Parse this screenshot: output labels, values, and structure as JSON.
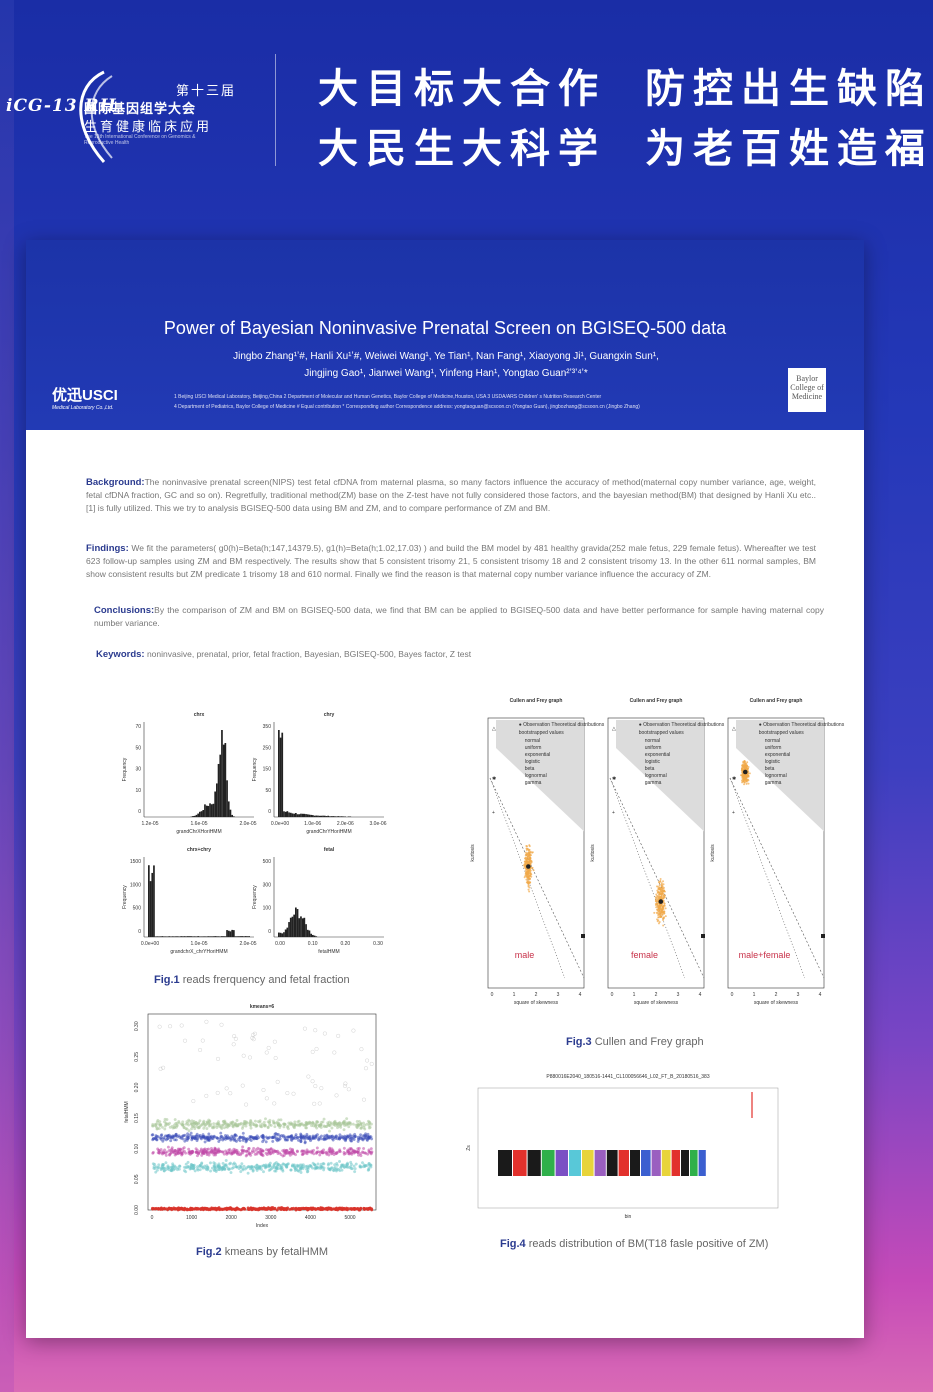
{
  "header": {
    "conference_mark": "iCG-13 RH",
    "edition": "第十三届",
    "name_line1": "国际基因组学大会",
    "name_line2": "生育健康临床应用",
    "name_en": "The 13th International Conference on Genomics & Reproductive Health",
    "slogan1": "大目标大合作",
    "slogan2": "防控出生缺陷",
    "slogan3": "大民生大科学",
    "slogan4": "为老百姓造福"
  },
  "poster": {
    "title": "Power of Bayesian Noninvasive Prenatal Screen on BGISEQ-500 data",
    "authors_line1": "Jingbo Zhang¹ʼ#, Hanli Xu¹ʼ#, Weiwei Wang¹, Ye Tian¹, Nan Fang¹, Xiaoyong Ji¹, Guangxin Sun¹,",
    "authors_line2": "Jingjing Gao¹, Jianwei Wang¹, Yinfeng Han¹, Yongtao Guan²ʼ³ʼ⁴ʼ*",
    "org_logo": "优迅USCI",
    "org_sub": "Medical Laboratory Co.,Ltd.",
    "affil_line1": "1 Beijing USCI Medical Laboratory, Beijing,China   2 Department of Molecular and Human Genetics, Baylor College of Medicine,Houston, USA   3  USDA/ARS Children' s Nutrition Research Center",
    "affil_line2": "4 Department of Pediatrics, Baylor College of Medicine  # Equal contribution  *  Corresponding author  Correspondence address: yongtaoguan@scsoon.cn (Yongtao Guan), jingbozhang@scsoon.cn (Jingbo Zhang)",
    "partner_logo": "Baylor College of Medicine",
    "background_label": "Background:",
    "background_text": "The noninvasive prenatal screen(NIPS) test fetal cfDNA from maternal plasma, so many factors influence the accuracy of method(maternal copy number variance, age, weight, fetal cfDNA fraction, GC and so on). Regretfully, traditional method(ZM) base on the Z-test have not fully considered those factors, and the bayesian method(BM) that designed by Hanli Xu etc..[1] is fully utilized. This we try to analysis BGISEQ-500 data using BM and ZM, and to compare performance of ZM and BM.",
    "findings_label": "Findings:",
    "findings_text": "We fit the parameters( g0(h)=Beta(h;147,14379.5), g1(h)=Beta(h;1.02,17.03) ) and build the BM model by 481 healthy gravida(252 male fetus, 229 female fetus). Whereafter we test 623 follow-up samples using ZM and BM respectively. The results show that 5 consistent trisomy 21, 5 consistent trisomy 18 and 2 consistent trisomy 13. In the other 611 normal samples, BM show consistent  results but ZM predicate 1 trisomy 18 and 610 normal. Finally we find the reason is that maternal copy number variance influence the accuracy of ZM.",
    "conclusions_label": "Conclusions:",
    "conclusions_text": "By the comparison of ZM and BM on BGISEQ-500 data, we find that BM can be applied to BGISEQ-500 data and have better performance for sample having maternal copy number variance.",
    "keywords_label": "Keywords:",
    "keywords_text": "noninvasive, prenatal, prior, fetal fraction, Bayesian, BGISEQ-500, Bayes factor, Z test"
  },
  "figures": {
    "fig1": {
      "caption_label": "Fig.1",
      "caption_text": " reads frerquency and fetal fraction",
      "panels": [
        {
          "title": "chrx",
          "xlabel": "grandChrXHoriHMM",
          "ylabel": "Frequency",
          "xticks": [
            "1.2e-05",
            "1.6e-05",
            "2.0e-05"
          ],
          "yticks": [
            "0",
            "10",
            "30",
            "50",
            "70"
          ]
        },
        {
          "title": "chry",
          "xlabel": "grandChrYHoriHMM",
          "ylabel": "Frequency",
          "xticks": [
            "0.0e+00",
            "1.0e-06",
            "2.0e-06",
            "3.0e-06"
          ],
          "yticks": [
            "0",
            "50",
            "150",
            "250",
            "350"
          ]
        },
        {
          "title": "chrx+chry",
          "xlabel": "grandchrX_chrYHoriHMM",
          "ylabel": "Frequency",
          "xticks": [
            "0.0e+00",
            "1.0e-05",
            "2.0e-05"
          ],
          "yticks": [
            "0",
            "500",
            "1000",
            "1500"
          ]
        },
        {
          "title": "fetal",
          "xlabel": "fetalHMM",
          "ylabel": "Frequency",
          "xticks": [
            "0.00",
            "0.10",
            "0.20",
            "0.30"
          ],
          "yticks": [
            "0",
            "100",
            "300",
            "500"
          ]
        }
      ]
    },
    "fig2": {
      "caption_label": "Fig.2",
      "caption_text": " kmeans by fetalHMM",
      "title": "kmeans=6",
      "xlabel": "Index",
      "ylabel": "fetalHMM",
      "xticks": [
        "0",
        "1000",
        "2000",
        "3000",
        "4000",
        "5000"
      ],
      "yticks": [
        "0.00",
        "0.05",
        "0.10",
        "0.15",
        "0.20",
        "0.25",
        "0.30"
      ],
      "cluster_colors": [
        "#d9342b",
        "#6fc7c9",
        "#c04aa8",
        "#3b4db8",
        "#a9c79a",
        "#999999"
      ]
    },
    "fig3": {
      "caption_label": "Fig.3",
      "caption_text": " Cullen and Frey graph",
      "panel_title": "Cullen and Frey graph",
      "xlabel": "square of skewness",
      "ylabel": "kurtosis",
      "legend_obs": "Observation",
      "legend_theory": "Theoretical distributions",
      "legend_boot": "bootstrapped values",
      "legend_items": [
        "normal",
        "uniform",
        "exponential",
        "logistic",
        "beta",
        "lognormal",
        "gamma"
      ],
      "labels": [
        "male",
        "female",
        "male+female"
      ],
      "label_color": "#c8324a"
    },
    "fig4": {
      "caption_label": "Fig.4",
      "caption_text": " reads distribution of BM(T18 fasle positive of ZM)",
      "title": "P880016E2040_180516-1441_CL100056646_L02_FT_B_20180516_383",
      "xlabel": "bin",
      "ylabel": "Zs",
      "chrom_colors": [
        "#1a1a1a",
        "#e2312c",
        "#1a1a1a",
        "#2fb04a",
        "#7b4fc4",
        "#58c8d8",
        "#e8d43a",
        "#9a5fc0",
        "#1a1a1a",
        "#e2312c",
        "#1a1a1a",
        "#3b5fd0",
        "#9a5fc0",
        "#e8d43a",
        "#e2312c",
        "#1a1a1a",
        "#2fb04a",
        "#3b5fd0"
      ]
    }
  }
}
